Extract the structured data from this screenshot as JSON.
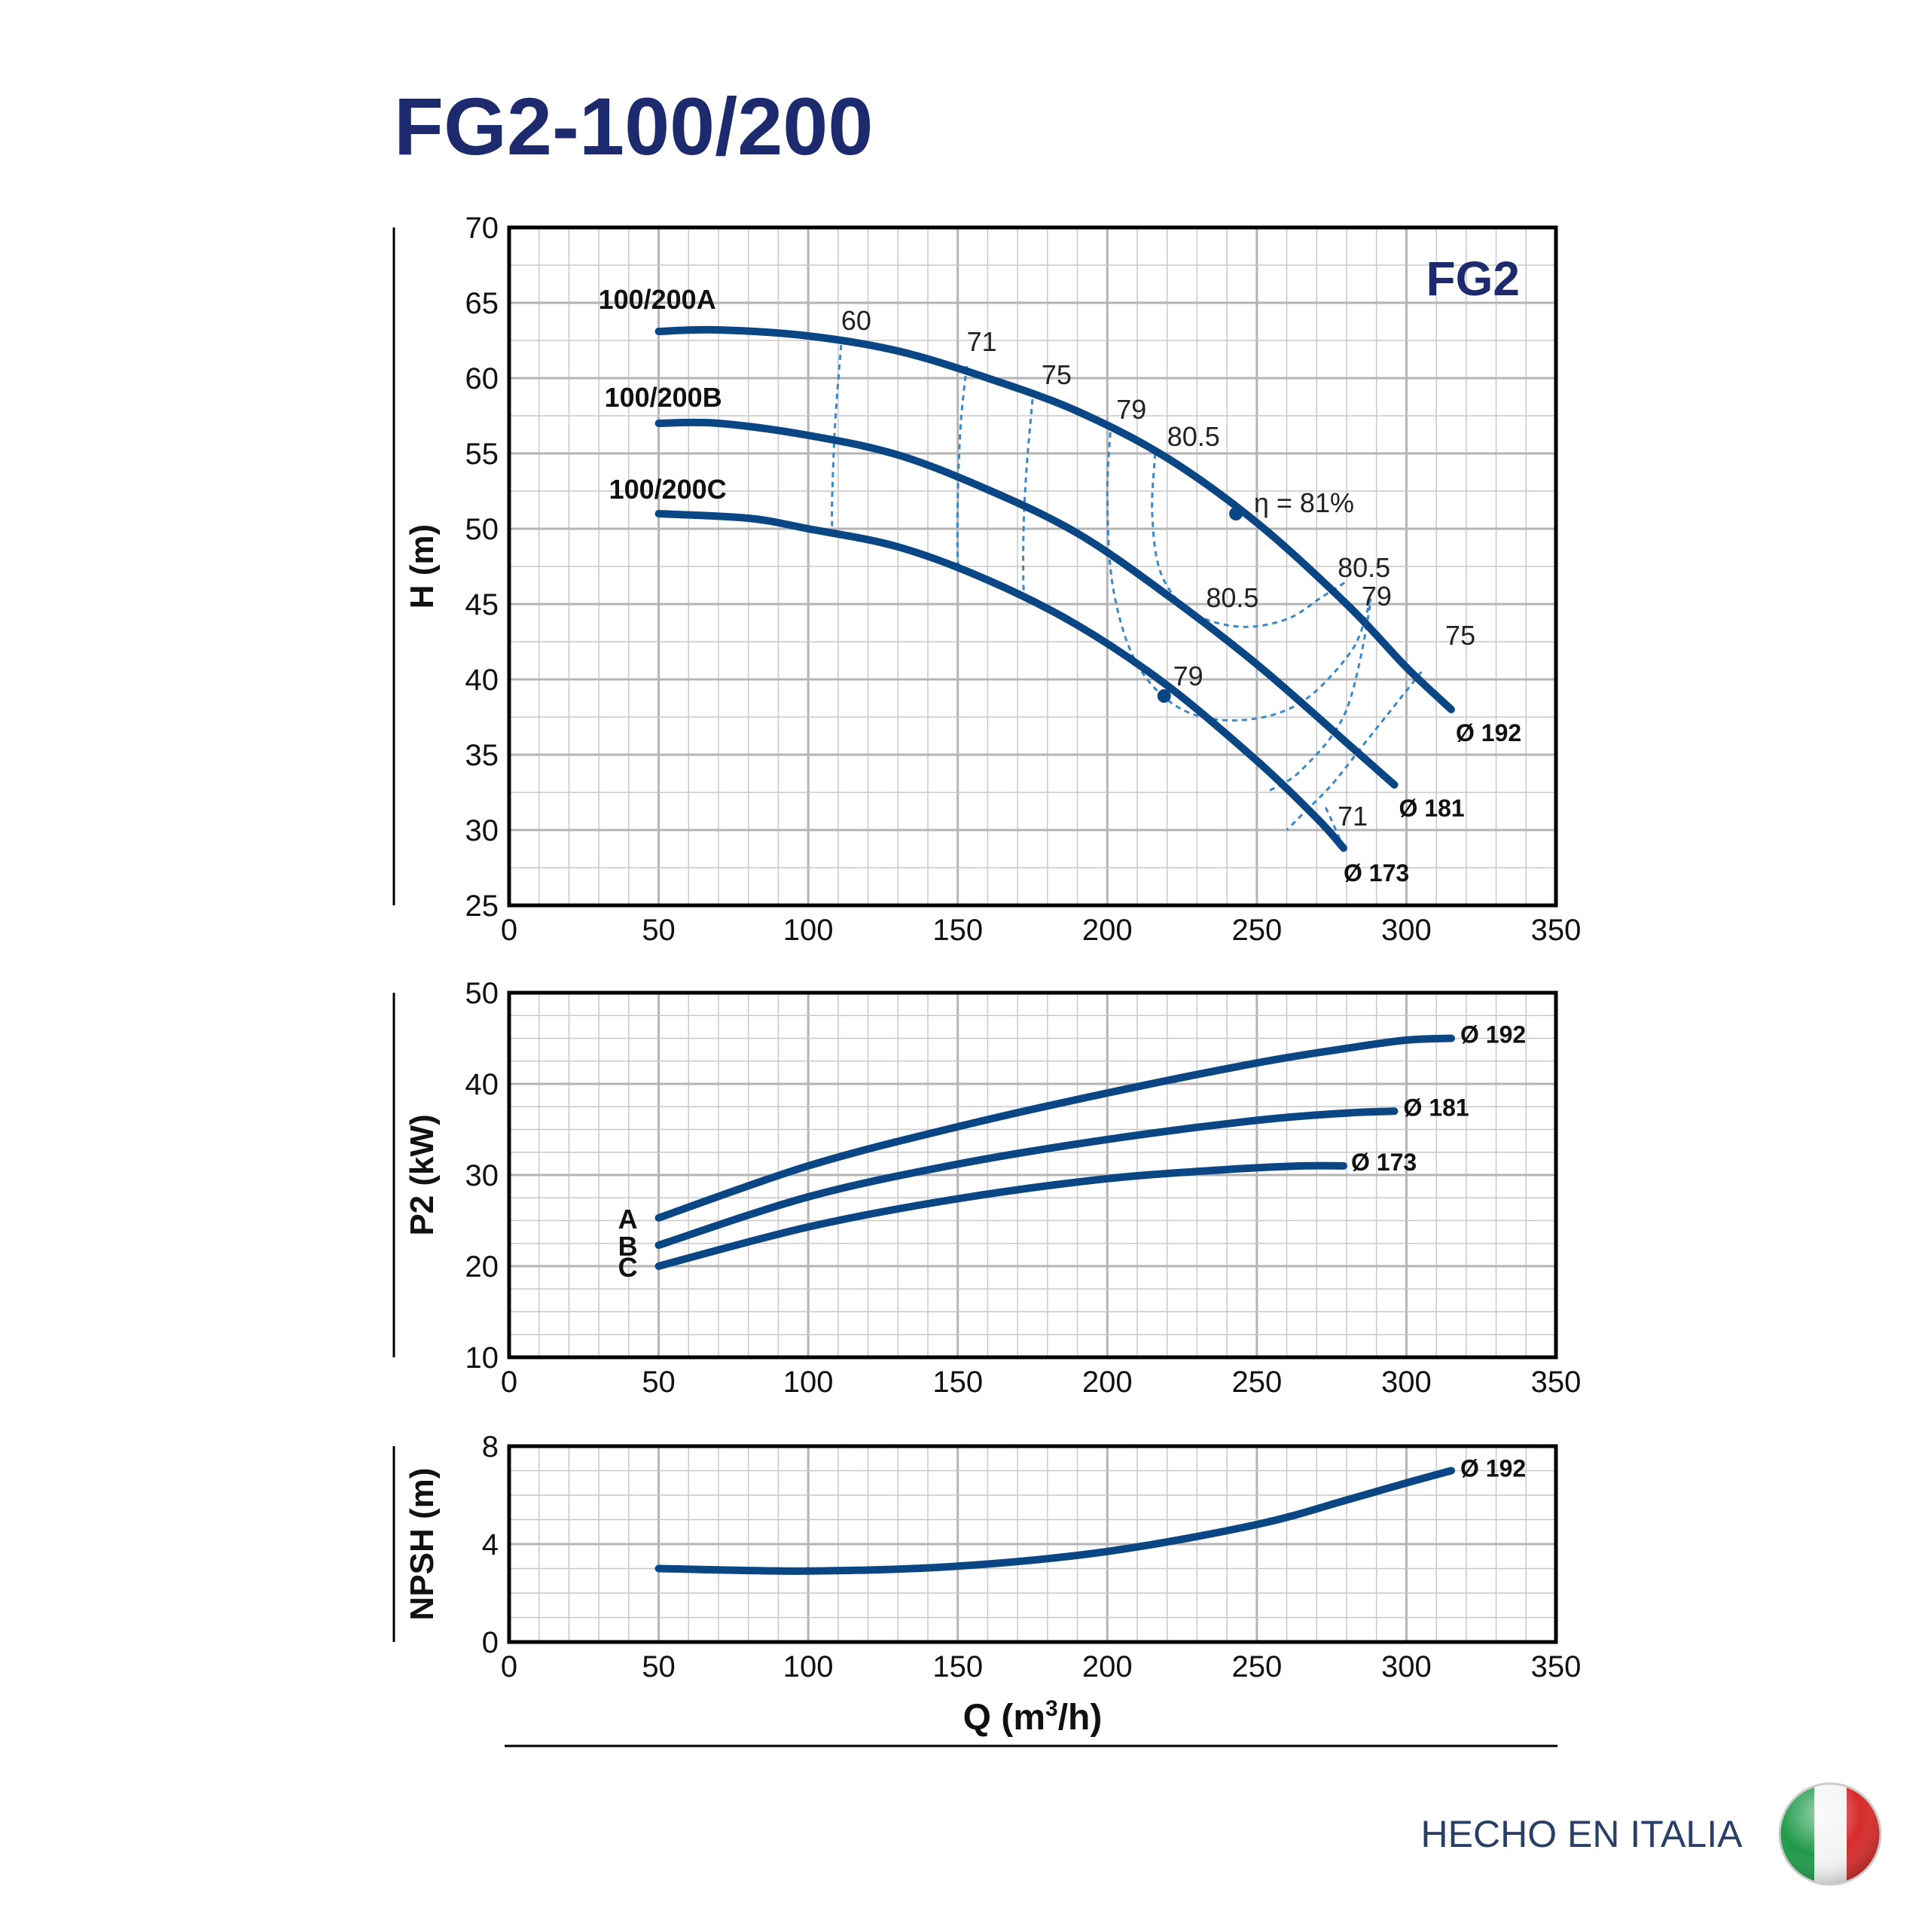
{
  "header": {
    "title": "FG2-100/200"
  },
  "footer": {
    "made_in": "HECHO EN ITALIA"
  },
  "colors": {
    "curve": "#0a4684",
    "title": "#1e2a6e",
    "iso": "#3a88c8",
    "grid": "#c8c8c8",
    "frame": "#000000",
    "flag_green": "#1f9a49",
    "flag_red": "#d62b2b"
  },
  "x_ticks": [
    "0",
    "50",
    "100",
    "150",
    "200",
    "250",
    "300",
    "350"
  ],
  "x_label": "Q (m",
  "x_label_sup": "3",
  "x_label_end": "/h)",
  "chart_data": [
    {
      "type": "line",
      "id": "head",
      "badge": "FG2",
      "ylabel": "H (m)",
      "xlim": [
        0,
        350
      ],
      "ylim": [
        25,
        70
      ],
      "y_ticks": [
        "70",
        "65",
        "60",
        "55",
        "50",
        "45",
        "40",
        "35",
        "30",
        "25"
      ],
      "series": [
        {
          "name": "100/200A",
          "end_label": "Ø 192",
          "x": [
            50,
            70,
            100,
            130,
            160,
            190,
            220,
            250,
            280,
            300,
            315
          ],
          "y": [
            63.1,
            63.2,
            62.8,
            61.8,
            60.0,
            57.8,
            54.7,
            50.4,
            45.0,
            40.8,
            38.0
          ]
        },
        {
          "name": "100/200B",
          "end_label": "Ø 181",
          "x": [
            50,
            70,
            100,
            130,
            160,
            190,
            220,
            250,
            280,
            296
          ],
          "y": [
            57.0,
            57.0,
            56.2,
            54.9,
            52.6,
            49.7,
            45.6,
            41.0,
            35.8,
            33.0
          ]
        },
        {
          "name": "100/200C",
          "end_label": "Ø 173",
          "x": [
            50,
            80,
            100,
            130,
            160,
            190,
            220,
            250,
            270,
            279
          ],
          "y": [
            51.0,
            50.7,
            50.0,
            48.8,
            46.6,
            43.6,
            39.6,
            34.6,
            30.8,
            28.8
          ]
        }
      ],
      "efficiency_curves": [
        {
          "label": "60",
          "x": [
            111,
            109,
            108,
            108
          ],
          "y": [
            62.2,
            57.0,
            52.0,
            50.0
          ]
        },
        {
          "label": "71",
          "x": [
            153,
            151,
            150,
            150,
            151
          ],
          "y": [
            60.8,
            57.0,
            52.0,
            48.0,
            47.6
          ]
        },
        {
          "label": "75",
          "x": [
            175,
            173,
            172,
            172,
            173
          ],
          "y": [
            58.6,
            54.0,
            50.0,
            46.0,
            45.3
          ]
        },
        {
          "label": "79",
          "x": [
            201,
            200,
            202,
            210,
            225,
            245,
            265,
            282,
            288,
            280,
            265,
            253
          ],
          "y": [
            56.4,
            52.0,
            46.0,
            41.0,
            38.0,
            37.3,
            38.5,
            42.0,
            45.2,
            38.0,
            34.0,
            32.5
          ]
        },
        {
          "label": "80.5",
          "x": [
            216,
            215,
            218,
            228,
            244,
            260,
            272,
            280
          ],
          "y": [
            55.0,
            51.0,
            47.0,
            44.5,
            43.5,
            44.0,
            45.5,
            46.5
          ]
        },
        {
          "label": "75",
          "x": [
            305,
            295,
            285,
            275,
            265,
            260
          ],
          "y": [
            40.5,
            38.0,
            35.5,
            33.0,
            31.0,
            30.0
          ]
        },
        {
          "label": "71",
          "x": [
            279,
            276,
            273
          ],
          "y": [
            28.8,
            30.2,
            31.5
          ]
        }
      ],
      "efficiency_labels": [
        {
          "text": "60",
          "x": 111,
          "y": 63.2
        },
        {
          "text": "71",
          "x": 153,
          "y": 61.8
        },
        {
          "text": "75",
          "x": 178,
          "y": 59.6
        },
        {
          "text": "79",
          "x": 203,
          "y": 57.3
        },
        {
          "text": "80.5",
          "x": 220,
          "y": 55.5
        },
        {
          "text": "η = 81%",
          "x": 249,
          "y": 51.1
        },
        {
          "text": "80.5",
          "x": 277,
          "y": 46.8
        },
        {
          "text": "79",
          "x": 285,
          "y": 44.9
        },
        {
          "text": "75",
          "x": 313,
          "y": 42.3
        },
        {
          "text": "80.5",
          "x": 233,
          "y": 44.8
        },
        {
          "text": "79",
          "x": 222,
          "y": 39.6
        },
        {
          "text": "71",
          "x": 277,
          "y": 30.3
        }
      ],
      "bep_markers": [
        {
          "x": 243,
          "y": 51.0
        },
        {
          "x": 219,
          "y": 38.9
        }
      ]
    },
    {
      "type": "line",
      "id": "power",
      "ylabel": "P2 (kW)",
      "xlim": [
        0,
        350
      ],
      "ylim": [
        10,
        50
      ],
      "y_ticks": [
        "50",
        "40",
        "30",
        "20",
        "10"
      ],
      "series": [
        {
          "name": "A",
          "end_label": "Ø 192",
          "x": [
            50,
            100,
            150,
            200,
            250,
            280,
            300,
            315
          ],
          "y": [
            25.3,
            31.0,
            35.3,
            39.0,
            42.3,
            43.9,
            44.8,
            45.0
          ]
        },
        {
          "name": "B",
          "end_label": "Ø 181",
          "x": [
            50,
            100,
            150,
            200,
            250,
            280,
            296
          ],
          "y": [
            22.3,
            27.6,
            31.2,
            33.9,
            36.0,
            36.8,
            37.0
          ]
        },
        {
          "name": "C",
          "end_label": "Ø 173",
          "x": [
            50,
            100,
            150,
            200,
            240,
            265,
            279
          ],
          "y": [
            20.0,
            24.3,
            27.4,
            29.6,
            30.6,
            31.0,
            31.0
          ]
        }
      ]
    },
    {
      "type": "line",
      "id": "npsh",
      "ylabel": "NPSH (m)",
      "xlim": [
        0,
        350
      ],
      "ylim": [
        0,
        8
      ],
      "y_ticks": [
        "8",
        "4",
        "0"
      ],
      "series": [
        {
          "end_label": "Ø 192",
          "x": [
            50,
            100,
            150,
            200,
            250,
            280,
            300,
            315
          ],
          "y": [
            3.0,
            2.9,
            3.1,
            3.7,
            4.8,
            5.8,
            6.5,
            7.0
          ]
        }
      ]
    }
  ]
}
